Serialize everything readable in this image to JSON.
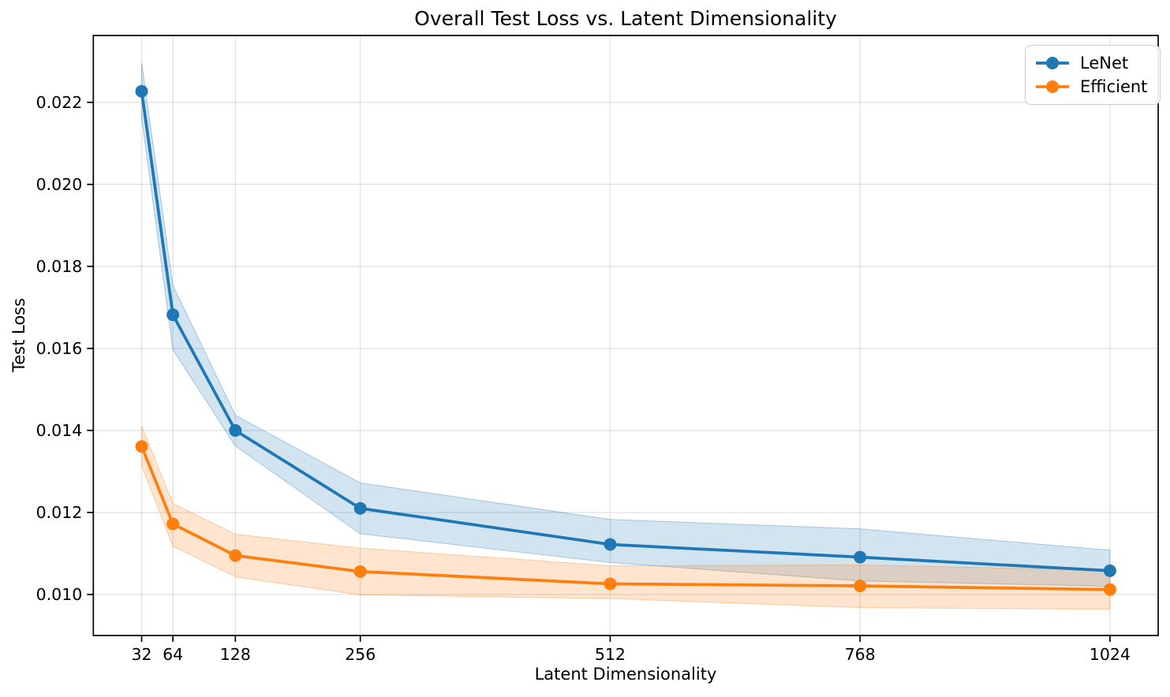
{
  "title": "Overall Test Loss vs. Latent Dimensionality",
  "legend": {
    "position": "upper right",
    "items": [
      "LeNet",
      "Efficient"
    ]
  },
  "chart_data": {
    "type": "line",
    "title": "Overall Test Loss vs. Latent Dimensionality",
    "xlabel": "Latent Dimensionality",
    "ylabel": "Test Loss",
    "x": [
      32,
      64,
      128,
      256,
      512,
      768,
      1024
    ],
    "xtick_labels": [
      "32",
      "64",
      "128",
      "256",
      "512",
      "768",
      "1024"
    ],
    "yticks": [
      0.01,
      0.012,
      0.014,
      0.016,
      0.018,
      0.02,
      0.022
    ],
    "ytick_labels": [
      "0.010",
      "0.012",
      "0.014",
      "0.016",
      "0.018",
      "0.020",
      "0.022"
    ],
    "xlim": [
      -17.5,
      1073.4
    ],
    "ylim": [
      0.009,
      0.02363
    ],
    "grid": true,
    "legend_position": "upper right",
    "series": [
      {
        "name": "LeNet",
        "color": "#1f77b4",
        "values": [
          0.02227,
          0.01682,
          0.014,
          0.0121,
          0.01122,
          0.01091,
          0.01058
        ],
        "band_lower": [
          0.02161,
          0.01597,
          0.01362,
          0.01148,
          0.01078,
          0.01033,
          0.0102
        ],
        "band_upper": [
          0.02296,
          0.01754,
          0.01437,
          0.01272,
          0.01183,
          0.0116,
          0.01108
        ],
        "band_opacity": 0.2
      },
      {
        "name": "Efficient",
        "color": "#ff7f0e",
        "values": [
          0.01361,
          0.01172,
          0.01095,
          0.01056,
          0.01026,
          0.01021,
          0.01012
        ],
        "band_lower": [
          0.01313,
          0.01118,
          0.01043,
          0.00999,
          0.0099,
          0.00968,
          0.00964
        ],
        "band_upper": [
          0.01411,
          0.01222,
          0.01147,
          0.01113,
          0.0107,
          0.01072,
          0.01059
        ],
        "band_opacity": 0.2
      }
    ]
  }
}
